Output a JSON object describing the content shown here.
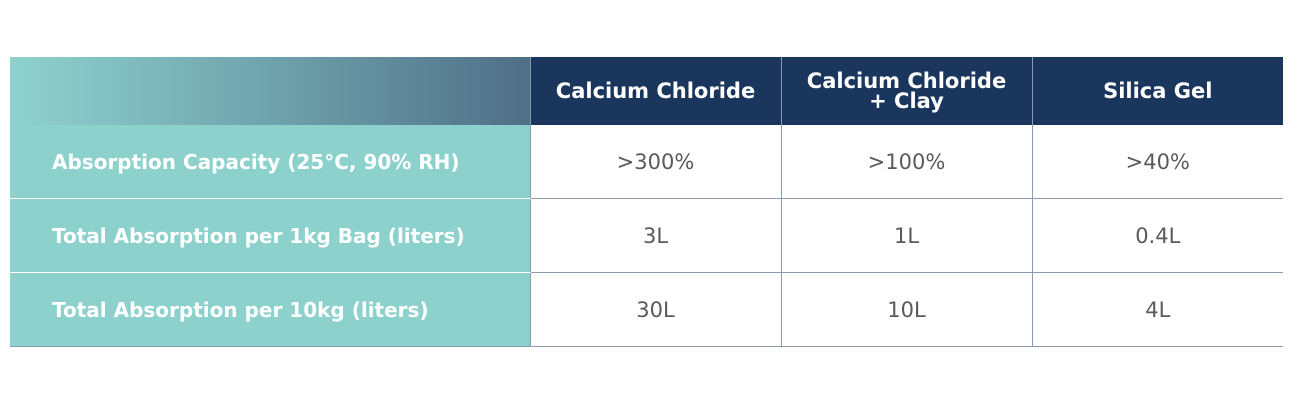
{
  "table": {
    "columns": [
      "Calcium Chloride",
      "Calcium Chloride\n+ Clay",
      "Silica Gel"
    ],
    "rows": [
      {
        "label": "Absorption Capacity (25°C, 90% RH)",
        "cells": [
          ">300%",
          ">100%",
          ">40%"
        ]
      },
      {
        "label": "Total Absorption per 1kg Bag (liters)",
        "cells": [
          "3L",
          "1L",
          "0.4L"
        ]
      },
      {
        "label": "Total Absorption per 10kg (liters)",
        "cells": [
          "30L",
          "10L",
          "4L"
        ]
      }
    ]
  }
}
